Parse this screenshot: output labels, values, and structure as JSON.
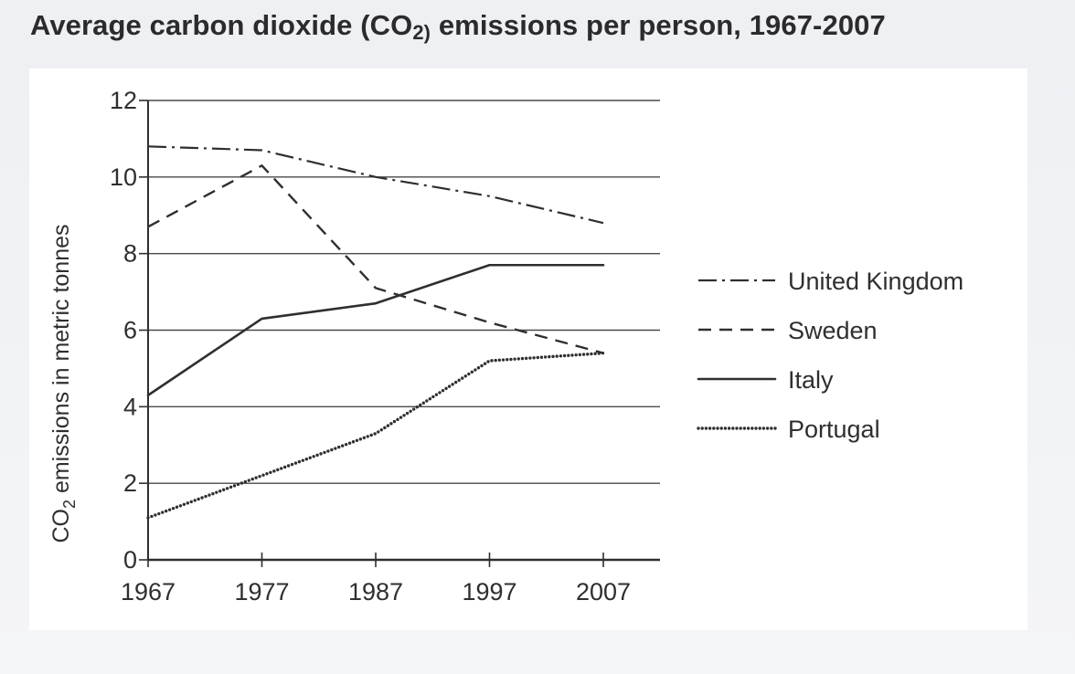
{
  "page": {
    "title_main": "Average carbon dioxide (CO",
    "title_sub": "2)",
    "title_rest": " emissions per person, 1967-2007"
  },
  "chart_data": {
    "type": "line",
    "title": "Average carbon dioxide (CO2) emissions per person, 1967-2007",
    "ylabel_main": "CO",
    "ylabel_sub": "2",
    "ylabel_rest": " emissions in metric tonnes",
    "xlabel": "",
    "x": [
      1967,
      1977,
      1987,
      1997,
      2007
    ],
    "xticks": [
      "1967",
      "1977",
      "1987",
      "1997",
      "2007"
    ],
    "yticks": [
      "0",
      "2",
      "4",
      "6",
      "8",
      "10",
      "12"
    ],
    "ylim": [
      0,
      12
    ],
    "grid": true,
    "legend_position": "right",
    "series": [
      {
        "name": "United Kingdom",
        "style": "dash-dot",
        "values": [
          10.8,
          10.7,
          10.0,
          9.5,
          8.8
        ]
      },
      {
        "name": "Sweden",
        "style": "dashed",
        "values": [
          8.7,
          10.3,
          7.1,
          6.2,
          5.4
        ]
      },
      {
        "name": "Italy",
        "style": "solid",
        "values": [
          4.3,
          6.3,
          6.7,
          7.7,
          7.7
        ]
      },
      {
        "name": "Portugal",
        "style": "dotted",
        "values": [
          1.1,
          2.2,
          3.3,
          5.2,
          5.4
        ]
      }
    ],
    "colors": {
      "line": "#2f2f2f",
      "grid": "#4a4a4a"
    }
  }
}
